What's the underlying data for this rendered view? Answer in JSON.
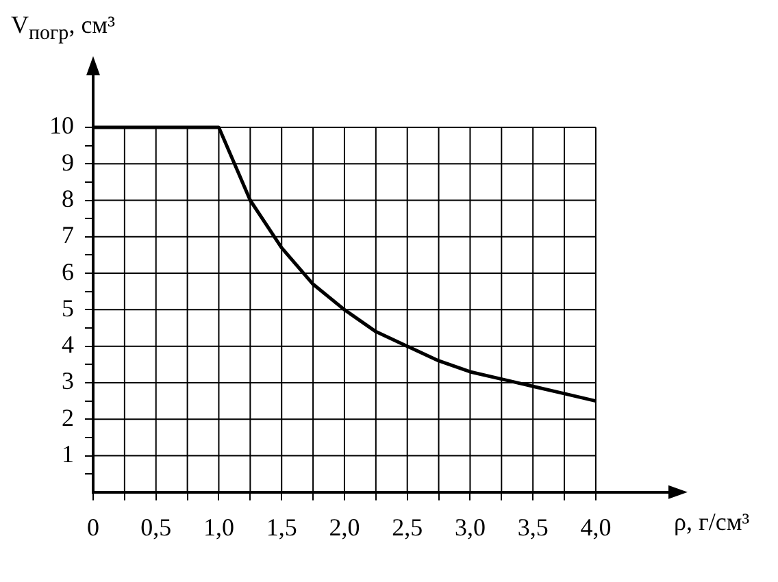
{
  "chart_data": {
    "type": "line",
    "xlabel": "ρ, г/см³",
    "ylabel": "V$_{погр}$, см³",
    "x": [
      0,
      1,
      1.25,
      1.5,
      1.75,
      2,
      2.25,
      2.5,
      2.75,
      3,
      3.25,
      3.5,
      3.75,
      4
    ],
    "series": [
      {
        "color": "#000000",
        "values": [
          10,
          10,
          8,
          6.7,
          5.7,
          5,
          4.4,
          4,
          3.6,
          3.3,
          3.1,
          2.9,
          2.7,
          2.5
        ]
      }
    ],
    "xlim": [
      0,
      4.6
    ],
    "ylim": [
      0,
      11.5
    ],
    "xticks": [
      0,
      {
        "value": 0.25,
        "label": null
      },
      {
        "value": 0.5,
        "label": "0,5"
      },
      {
        "value": 0.75,
        "label": null
      },
      {
        "value": 1,
        "label": "1,0"
      },
      {
        "value": 1.25,
        "label": null
      },
      {
        "value": 1.5,
        "label": "1,5"
      },
      {
        "value": 1.75,
        "label": null
      },
      {
        "value": 2,
        "label": "2,0"
      },
      {
        "value": 2.25,
        "label": null
      },
      {
        "value": 2.5,
        "label": "2,5"
      },
      {
        "value": 2.75,
        "label": null
      },
      {
        "value": 3,
        "label": "3,0"
      },
      {
        "value": 3.25,
        "label": null
      },
      {
        "value": 3.5,
        "label": "3,5"
      },
      {
        "value": 3.75,
        "label": null
      },
      {
        "value": 4,
        "label": "4,0"
      }
    ],
    "yticks": [
      {
        "value": 0.5,
        "label": null
      },
      1,
      {
        "value": 1.5,
        "label": null
      },
      2,
      {
        "value": 2.5,
        "label": null
      },
      3,
      {
        "value": 3.5,
        "label": null
      },
      4,
      {
        "value": 4.5,
        "label": null
      },
      5,
      {
        "value": 5.5,
        "label": null
      },
      6,
      {
        "value": 6.5,
        "label": null
      },
      7,
      {
        "value": 7.5,
        "label": null
      },
      8,
      {
        "value": 8.5,
        "label": null
      },
      9,
      {
        "value": 9.5,
        "label": null
      },
      10
    ],
    "grid": true,
    "marker": "none",
    "line_style": "solid"
  }
}
